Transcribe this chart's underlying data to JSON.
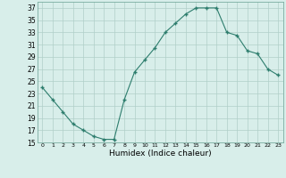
{
  "x": [
    0,
    1,
    2,
    3,
    4,
    5,
    6,
    7,
    8,
    9,
    10,
    11,
    12,
    13,
    14,
    15,
    16,
    17,
    18,
    19,
    20,
    21,
    22,
    23
  ],
  "y": [
    24,
    22,
    20,
    18,
    17,
    16,
    15.5,
    15.5,
    22,
    26.5,
    28.5,
    30.5,
    33,
    34.5,
    36,
    37,
    37,
    37,
    33,
    32.5,
    30,
    29.5,
    27,
    26
  ],
  "line_color": "#2d7d6d",
  "marker": "+",
  "marker_color": "#2d7d6d",
  "background_color": "#d8eeea",
  "grid_color": "#b0cfc8",
  "xlabel": "Humidex (Indice chaleur)",
  "ylim": [
    15,
    38
  ],
  "xlim": [
    -0.5,
    23.5
  ],
  "yticks": [
    15,
    17,
    19,
    21,
    23,
    25,
    27,
    29,
    31,
    33,
    35,
    37
  ],
  "xticks": [
    0,
    1,
    2,
    3,
    4,
    5,
    6,
    7,
    8,
    9,
    10,
    11,
    12,
    13,
    14,
    15,
    16,
    17,
    18,
    19,
    20,
    21,
    22,
    23
  ]
}
